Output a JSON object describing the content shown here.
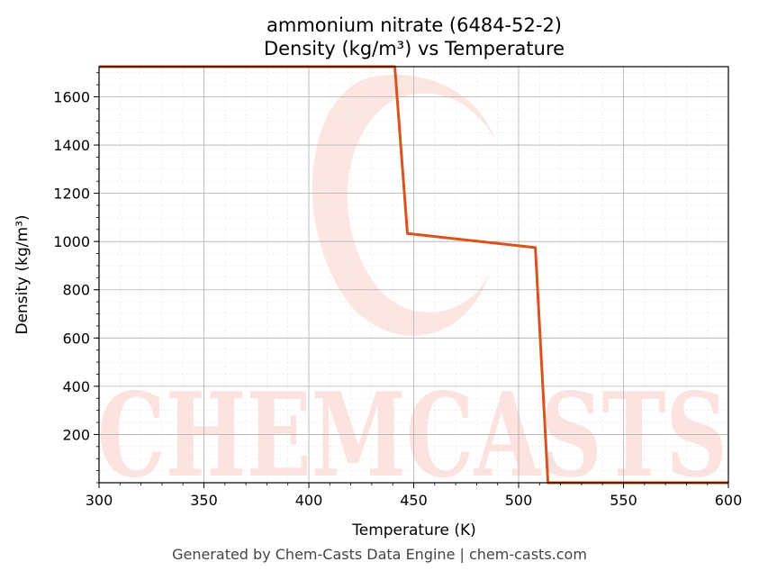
{
  "chart_data": {
    "type": "line",
    "title": "ammonium nitrate (6484-52-2)",
    "subtitle": "Density (kg/m³) vs Temperature",
    "xlabel": "Temperature (K)",
    "ylabel": "Density (kg/m³)",
    "xlim": [
      300,
      600
    ],
    "ylim": [
      0,
      1725
    ],
    "x_ticks": [
      300,
      350,
      400,
      450,
      500,
      550,
      600
    ],
    "y_ticks": [
      200,
      400,
      600,
      800,
      1000,
      1200,
      1400,
      1600
    ],
    "grid": true,
    "legend": "none",
    "series": [
      {
        "color": "#d9531e",
        "x": [
          300,
          441,
          447,
          508,
          514,
          600
        ],
        "y": [
          1725,
          1725,
          1033,
          975,
          0,
          0
        ]
      }
    ]
  },
  "watermark": {
    "text": "CHEMCASTS",
    "color": "#fde3df"
  },
  "footer": "Generated by Chem-Casts Data Engine | chem-casts.com"
}
